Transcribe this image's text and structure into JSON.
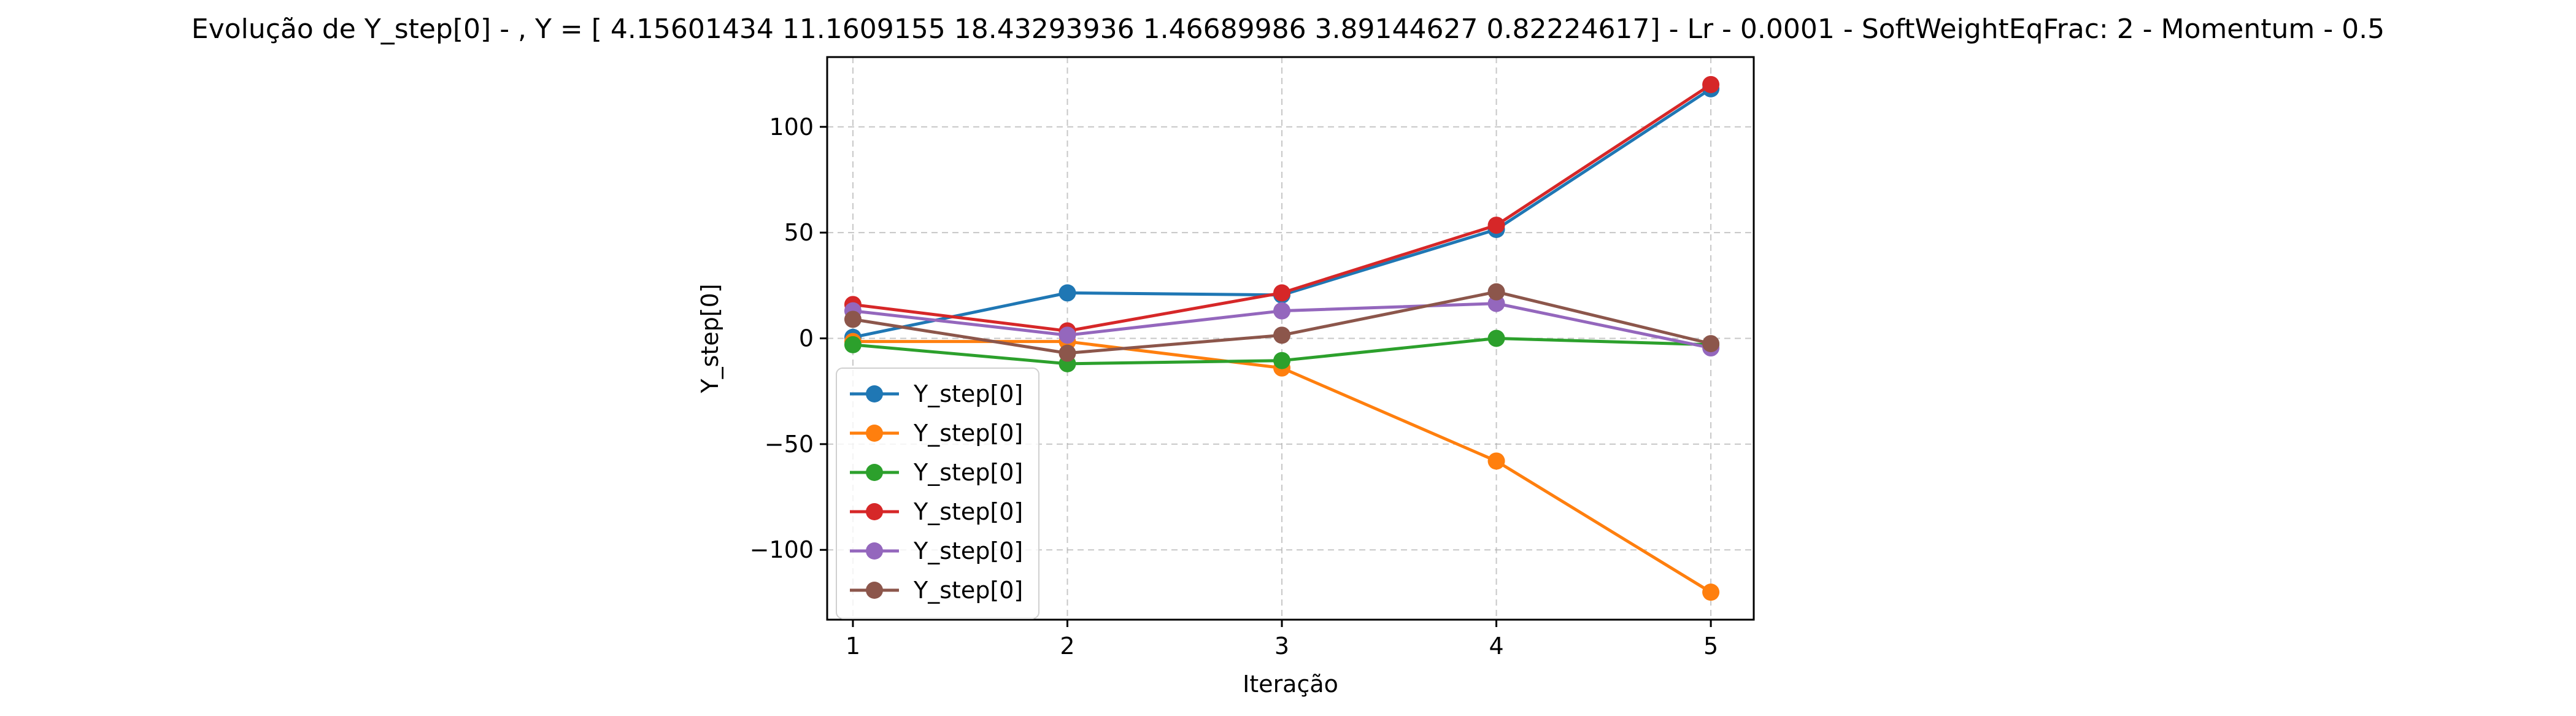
{
  "chart_data": {
    "type": "line",
    "title": "Evolução de Y_step[0] - , Y = [ 4.15601434 11.1609155  18.43293936  1.46689986  3.89144627  0.82224617] - Lr - 0.0001 - SoftWeightEqFrac: 2 - Momentum - 0.5",
    "xlabel": "Iteração",
    "ylabel": "Y_step[0]",
    "x": [
      1,
      2,
      3,
      4,
      5
    ],
    "xticks": [
      1,
      2,
      3,
      4,
      5
    ],
    "yticks": [
      -100,
      -50,
      0,
      50,
      100
    ],
    "xlim": [
      0.88,
      5.2
    ],
    "ylim": [
      -133,
      133
    ],
    "grid": true,
    "legend_position": "lower-left",
    "series": [
      {
        "name": "Y_step[0]",
        "color": "#1f77b4",
        "values": [
          0.5,
          21.5,
          20.5,
          51.5,
          118
        ]
      },
      {
        "name": "Y_step[0]",
        "color": "#ff7f0e",
        "values": [
          -1.5,
          -1.5,
          -14,
          -58,
          -120
        ]
      },
      {
        "name": "Y_step[0]",
        "color": "#2ca02c",
        "values": [
          -3,
          -12,
          -10.5,
          0,
          -3
        ]
      },
      {
        "name": "Y_step[0]",
        "color": "#d62728",
        "values": [
          16,
          3.5,
          21.5,
          53.5,
          120
        ]
      },
      {
        "name": "Y_step[0]",
        "color": "#9467bd",
        "values": [
          13,
          1.5,
          13,
          16.5,
          -4.5
        ]
      },
      {
        "name": "Y_step[0]",
        "color": "#8c564b",
        "values": [
          9,
          -7,
          1.5,
          22,
          -2.5
        ]
      }
    ]
  }
}
